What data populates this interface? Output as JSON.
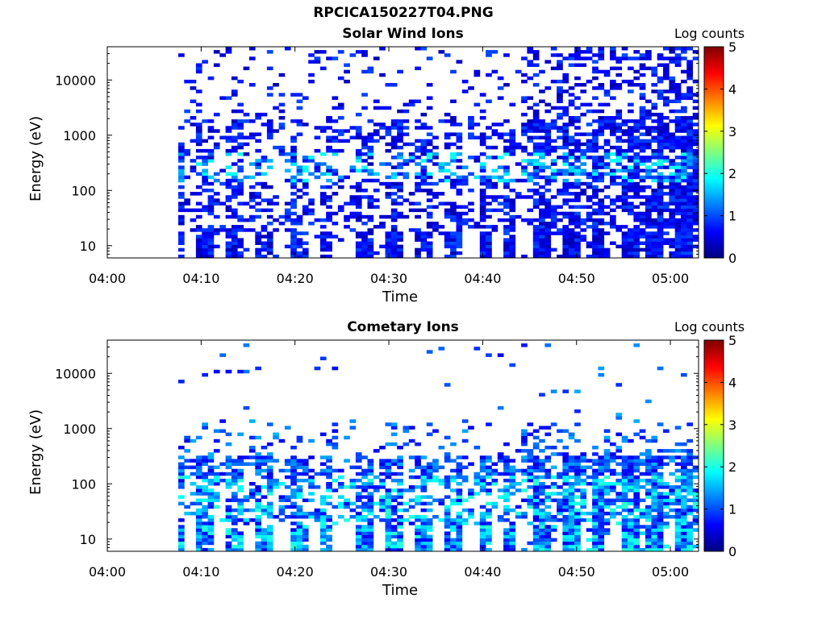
{
  "page_title": "RPCICA150227T04.PNG",
  "colorbar": {
    "title": "Log counts",
    "ticks": [
      "0",
      "1",
      "2",
      "3",
      "4",
      "5"
    ],
    "range": [
      0,
      5
    ]
  },
  "colormap": [
    "#00007f",
    "#0000ff",
    "#007fff",
    "#00ffff",
    "#7fff7f",
    "#ffff00",
    "#ff7f00",
    "#ff0000",
    "#7f0000"
  ],
  "chart_data": [
    {
      "type": "heatmap",
      "title": "Solar Wind Ions",
      "xlabel": "Time",
      "ylabel": "Energy (eV)",
      "y_scale": "log",
      "ylim": [
        6,
        40000
      ],
      "xlim": [
        "04:00",
        "05:03"
      ],
      "x_ticks": [
        "04:00",
        "04:10",
        "04:20",
        "04:30",
        "04:40",
        "04:50",
        "05:00"
      ],
      "y_ticks": [
        "10",
        "100",
        "1000",
        "10000"
      ],
      "color_label": "Log counts",
      "color_range": [
        0,
        5
      ]
    },
    {
      "type": "heatmap",
      "title": "Cometary Ions",
      "xlabel": "Time",
      "ylabel": "Energy (eV)",
      "y_scale": "log",
      "ylim": [
        6,
        40000
      ],
      "xlim": [
        "04:00",
        "05:03"
      ],
      "x_ticks": [
        "04:00",
        "04:10",
        "04:20",
        "04:30",
        "04:40",
        "04:50",
        "05:00"
      ],
      "y_ticks": [
        "10",
        "100",
        "1000",
        "10000"
      ],
      "color_label": "Log counts",
      "color_range": [
        0,
        5
      ]
    }
  ]
}
